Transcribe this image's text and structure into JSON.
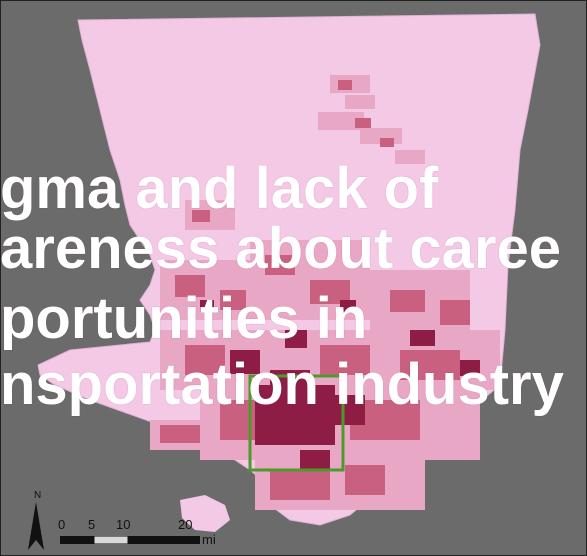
{
  "map": {
    "colors": {
      "background": "#6b6b6b",
      "county_fill": "#f3c9e6",
      "tract_light": "#e9a7c6",
      "tract_mid": "#c9607f",
      "tract_dark": "#8e1d46",
      "inset_box": "#4d9a2a"
    }
  },
  "overlay": {
    "lines": [
      "gma and lack of",
      "areness about caree",
      "portunities in",
      "nsportation industry"
    ]
  },
  "scale_bar": {
    "north_label": "N",
    "ticks": [
      "0",
      "5",
      "10",
      "20"
    ],
    "unit": "mi"
  }
}
